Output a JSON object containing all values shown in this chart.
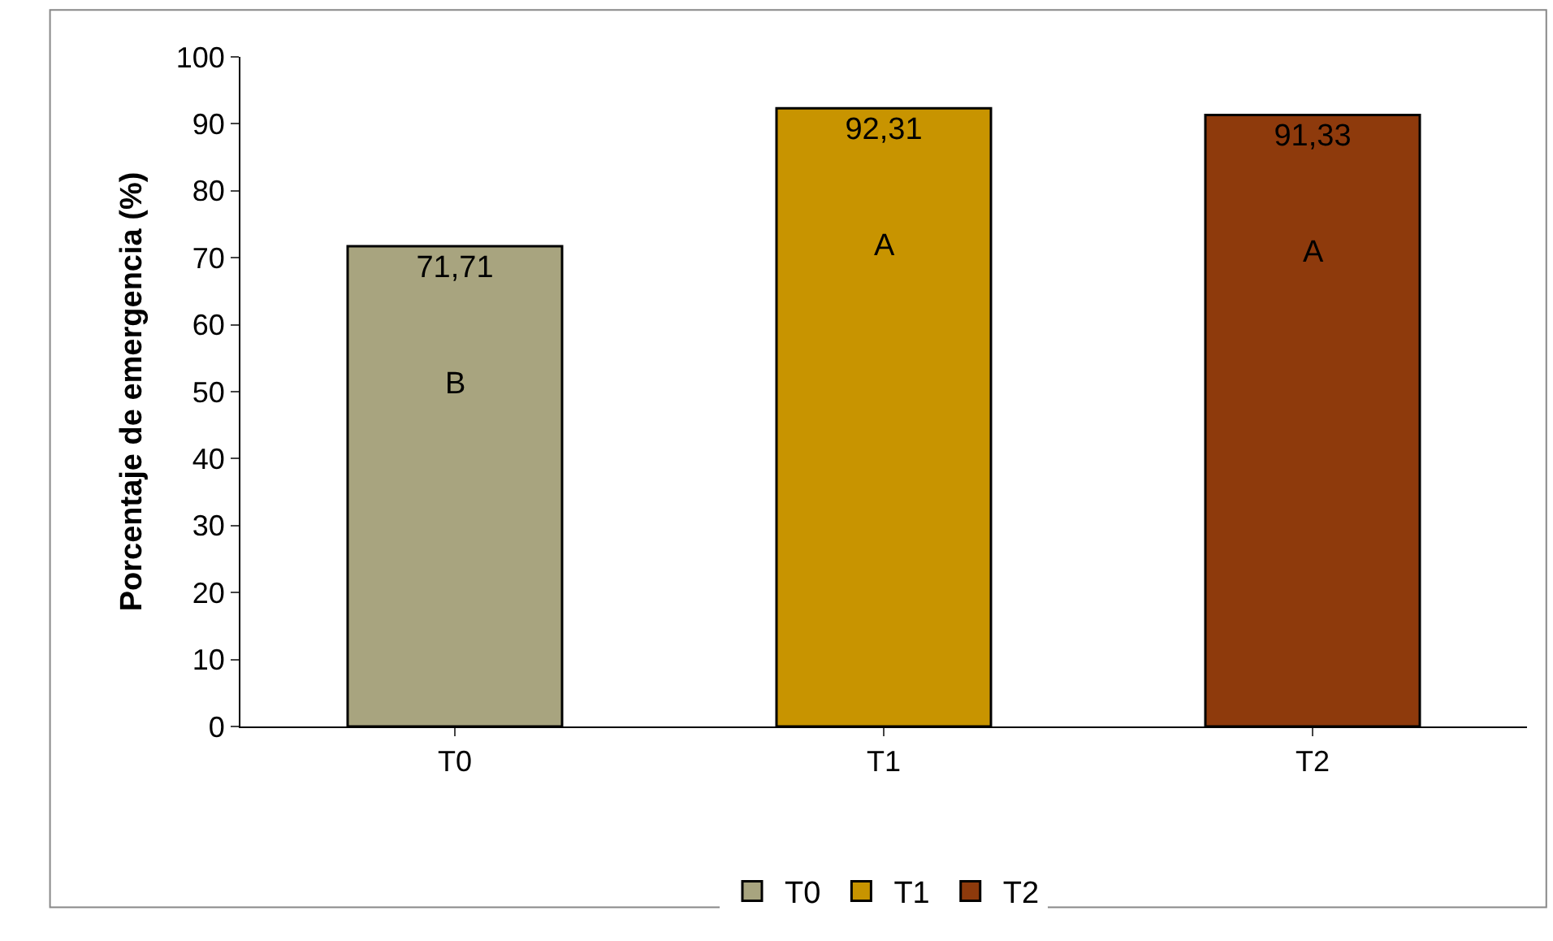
{
  "chart_data": {
    "type": "bar",
    "ylabel": "Porcentaje de emergencia (%)",
    "categories": [
      "T0",
      "T1",
      "T2"
    ],
    "series": [
      {
        "name": "T0",
        "color": "#a8a47f",
        "values": [
          71.71,
          null,
          null
        ],
        "value_labels": [
          "71,71",
          null,
          null
        ]
      },
      {
        "name": "T1",
        "color": "#c89400",
        "values": [
          null,
          92.31,
          null
        ],
        "value_labels": [
          null,
          "92,31",
          null
        ]
      },
      {
        "name": "T2",
        "color": "#8e3a0c",
        "values": [
          null,
          null,
          91.33
        ],
        "value_labels": [
          null,
          null,
          "91,33"
        ]
      }
    ],
    "ylim": [
      0,
      100
    ],
    "yticks": [
      0,
      10,
      20,
      30,
      40,
      50,
      60,
      70,
      80,
      90,
      100
    ],
    "legend": "bottom",
    "annotations": [
      "B",
      "A",
      "A"
    ]
  }
}
